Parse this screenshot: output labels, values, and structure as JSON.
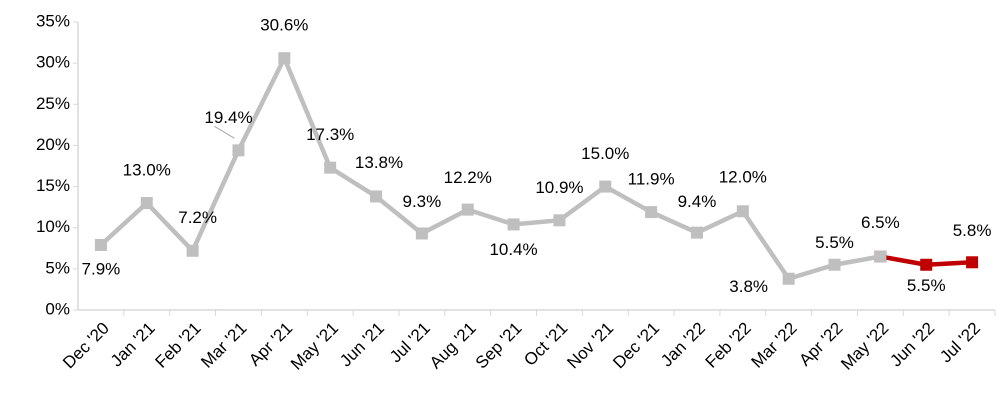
{
  "chart_data": {
    "type": "line",
    "categories": [
      "Dec '20",
      "Jan '21",
      "Feb '21",
      "Mar '21",
      "Apr '21",
      "May '21",
      "Jun '21",
      "Jul '21",
      "Aug '21",
      "Sep '21",
      "Oct '21",
      "Nov '21",
      "Dec '21",
      "Jan '22",
      "Feb '22",
      "Mar '22",
      "Apr '22",
      "May '22",
      "Jun '22",
      "Jul '22"
    ],
    "series": [
      {
        "color": "#bfbfbf",
        "values": [
          7.9,
          13.0,
          7.2,
          19.4,
          30.6,
          17.3,
          13.8,
          9.3,
          12.2,
          10.4,
          10.9,
          15.0,
          11.9,
          9.4,
          12.0,
          3.8,
          5.5,
          6.5,
          null,
          null
        ],
        "value_labels": [
          "7.9%",
          "13.0%",
          "7.2%",
          "19.4%",
          "30.6%",
          "17.3%",
          "13.8%",
          "9.3%",
          "12.2%",
          "10.4%",
          "10.9%",
          "15.0%",
          "11.9%",
          "9.4%",
          "12.0%",
          "3.8%",
          "5.5%",
          "6.5%",
          null,
          null
        ]
      },
      {
        "color": "#c00000",
        "values": [
          null,
          null,
          null,
          null,
          null,
          null,
          null,
          null,
          null,
          null,
          null,
          null,
          null,
          null,
          null,
          null,
          null,
          6.5,
          5.5,
          5.8
        ],
        "value_labels": [
          null,
          null,
          null,
          null,
          null,
          null,
          null,
          null,
          null,
          null,
          null,
          null,
          null,
          null,
          null,
          null,
          null,
          "6.5%",
          "5.5%",
          "5.8%"
        ]
      }
    ],
    "ylim": [
      0,
      35
    ],
    "yticks": [
      {
        "value": 0,
        "label": "0%"
      },
      {
        "value": 5,
        "label": "5%"
      },
      {
        "value": 10,
        "label": "10%"
      },
      {
        "value": 15,
        "label": "15%"
      },
      {
        "value": 20,
        "label": "20%"
      },
      {
        "value": 25,
        "label": "25%"
      },
      {
        "value": 30,
        "label": "30%"
      },
      {
        "value": 35,
        "label": "35%"
      }
    ],
    "grid": false
  }
}
